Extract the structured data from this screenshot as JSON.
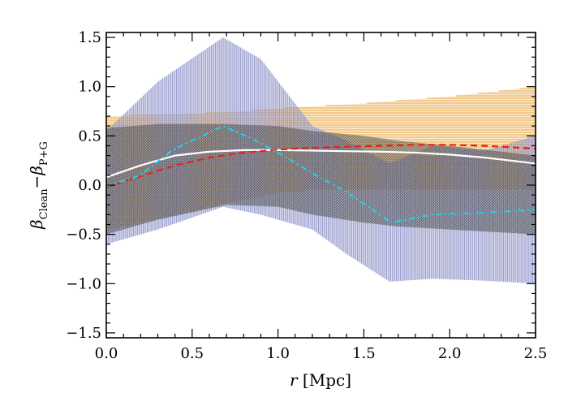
{
  "chart_data": {
    "type": "line",
    "title": "",
    "xlabel_main": "r",
    "xlabel_unit": "[Mpc]",
    "ylabel_beta": "β",
    "ylabel_sub1": "Clean",
    "ylabel_minus": "−",
    "ylabel_sub2": "P+G",
    "xlim": [
      0.0,
      2.5
    ],
    "ylim": [
      -1.55,
      1.55
    ],
    "xticks": [
      0.0,
      0.5,
      1.0,
      1.5,
      2.0,
      2.5
    ],
    "xtick_labels": [
      "0.0",
      "0.5",
      "1.0",
      "1.5",
      "2.0",
      "2.5"
    ],
    "yticks": [
      -1.5,
      -1.0,
      -0.5,
      0.0,
      0.5,
      1.0,
      1.5
    ],
    "ytick_labels": [
      "−1.5",
      "−1.0",
      "−0.5",
      "0.0",
      "0.5",
      "1.0",
      "1.5"
    ],
    "grid": false,
    "bands": [
      {
        "color": "#f5c47a",
        "hatch": "horizontal",
        "x": [
          0.0,
          0.3,
          0.7,
          1.0,
          1.2,
          1.5,
          1.7,
          2.0,
          2.5
        ],
        "upper": [
          0.7,
          0.72,
          0.74,
          0.78,
          0.8,
          0.83,
          0.86,
          0.9,
          1.0
        ],
        "lower": [
          -0.45,
          -0.35,
          -0.18,
          -0.08,
          -0.05,
          -0.05,
          -0.05,
          -0.05,
          -0.05
        ]
      },
      {
        "color": "#9196c9",
        "hatch": "vertical",
        "x": [
          0.0,
          0.3,
          0.68,
          0.9,
          1.2,
          1.4,
          1.65,
          1.9,
          2.2,
          2.5
        ],
        "upper": [
          0.55,
          1.05,
          1.5,
          1.28,
          0.6,
          0.45,
          0.22,
          0.4,
          0.35,
          0.5
        ],
        "lower": [
          -0.6,
          -0.45,
          -0.22,
          -0.3,
          -0.45,
          -0.7,
          -0.98,
          -0.95,
          -0.97,
          -1.0
        ]
      },
      {
        "color": "#5a5a5a",
        "hatch": "diagonal",
        "x": [
          0.0,
          0.3,
          0.7,
          1.0,
          1.2,
          1.5,
          1.7,
          2.0,
          2.5
        ],
        "upper": [
          0.58,
          0.62,
          0.62,
          0.6,
          0.55,
          0.5,
          0.45,
          0.4,
          0.3
        ],
        "lower": [
          -0.5,
          -0.35,
          -0.2,
          -0.22,
          -0.3,
          -0.38,
          -0.42,
          -0.45,
          -0.5
        ]
      }
    ],
    "series": [
      {
        "color": "#ffffff",
        "style": "solid",
        "x": [
          0.0,
          0.2,
          0.4,
          0.6,
          0.8,
          1.0,
          1.2,
          1.4,
          1.6,
          1.8,
          2.0,
          2.2,
          2.5
        ],
        "y": [
          0.08,
          0.2,
          0.3,
          0.34,
          0.355,
          0.355,
          0.35,
          0.345,
          0.34,
          0.33,
          0.31,
          0.28,
          0.22
        ]
      },
      {
        "color": "#e8201c",
        "style": "dashed",
        "x": [
          0.0,
          0.2,
          0.4,
          0.6,
          0.8,
          1.0,
          1.2,
          1.4,
          1.6,
          1.8,
          2.0,
          2.2,
          2.5
        ],
        "y": [
          -0.02,
          0.09,
          0.2,
          0.28,
          0.33,
          0.36,
          0.38,
          0.39,
          0.4,
          0.41,
          0.41,
          0.4,
          0.37
        ]
      },
      {
        "color": "#22d0e8",
        "style": "dashdot",
        "x": [
          0.0,
          0.2,
          0.38,
          0.68,
          0.85,
          1.05,
          1.2,
          1.4,
          1.66,
          1.9,
          2.2,
          2.5
        ],
        "y": [
          -0.01,
          0.1,
          0.35,
          0.6,
          0.47,
          0.28,
          0.12,
          -0.07,
          -0.38,
          -0.3,
          -0.28,
          -0.25
        ]
      }
    ]
  }
}
